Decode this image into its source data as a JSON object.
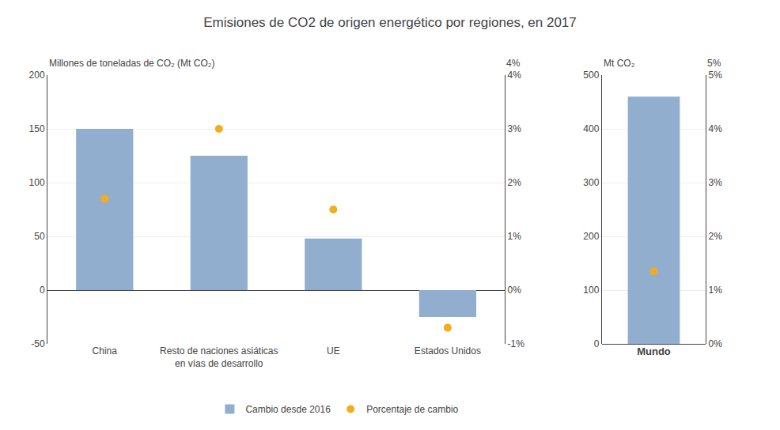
{
  "chart_data": [
    {
      "type": "bar",
      "title": "Emisiones de CO2 de origen energético por regiones, en 2017",
      "ylabel": "Millones de toneladas de CO₂ (Mt CO₂)",
      "y2label": "4%",
      "categories": [
        "China",
        "Resto de naciones asiáticas\nen vías de desarrollo",
        "UE",
        "Estados Unidos"
      ],
      "series": [
        {
          "name": "Cambio desde 2016",
          "type": "bar",
          "color": "#92AECF",
          "values": [
            150,
            125,
            48,
            -25
          ]
        },
        {
          "name": "Porcentaje de cambio",
          "type": "scatter",
          "marker": "circle",
          "axis": "y2",
          "color": "#F4AC1C",
          "values": [
            1.7,
            3.0,
            1.5,
            -0.7
          ]
        }
      ],
      "ylim": [
        -50,
        200
      ],
      "yticks": [
        -50,
        0,
        50,
        100,
        150,
        200
      ],
      "y2lim": [
        -1,
        4
      ],
      "y2ticks": [
        {
          "value": -1,
          "label": "-1%"
        },
        {
          "value": 0,
          "label": "0%"
        },
        {
          "value": 1,
          "label": "1%"
        },
        {
          "value": 2,
          "label": "2%"
        },
        {
          "value": 3,
          "label": "3%"
        },
        {
          "value": 4,
          "label": "4%"
        }
      ],
      "grid": true,
      "legend": "bottom"
    },
    {
      "type": "bar",
      "ylabel": "Mt CO₂",
      "y2label": "5%",
      "categories": [
        "Mundo"
      ],
      "series": [
        {
          "name": "Cambio desde 2016",
          "type": "bar",
          "color": "#92AECF",
          "values": [
            460
          ]
        },
        {
          "name": "Porcentaje de cambio",
          "type": "scatter",
          "marker": "circle",
          "axis": "y2",
          "color": "#F4AC1C",
          "values": [
            1.35
          ]
        }
      ],
      "ylim": [
        0,
        500
      ],
      "yticks": [
        0,
        100,
        200,
        300,
        400,
        500
      ],
      "y2lim": [
        0,
        5
      ],
      "y2ticks": [
        {
          "value": 0,
          "label": "0%"
        },
        {
          "value": 1,
          "label": "1%"
        },
        {
          "value": 2,
          "label": "2%"
        },
        {
          "value": 3,
          "label": "3%"
        },
        {
          "value": 4,
          "label": "4%"
        },
        {
          "value": 5,
          "label": "5%"
        }
      ],
      "grid": true
    }
  ]
}
